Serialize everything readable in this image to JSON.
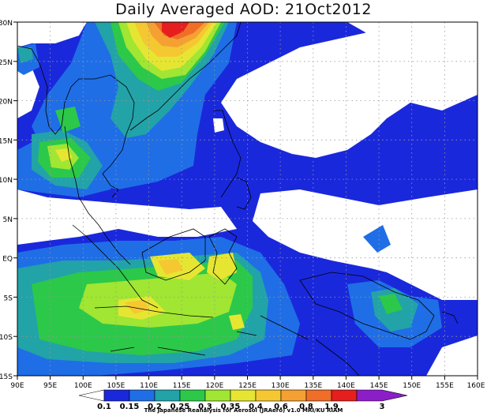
{
  "title": "Daily Averaged AOD: 21Oct2012",
  "credit": "The Japanese Reanalysis for Aerosol (JRAero) v1.0 MRI/KU RIAM",
  "map": {
    "lon_range": [
      90,
      160
    ],
    "lat_range": [
      -15,
      30
    ],
    "lon_ticks": [
      "90E",
      "95E",
      "100E",
      "105E",
      "110E",
      "115E",
      "120E",
      "125E",
      "130E",
      "135E",
      "140E",
      "145E",
      "150E",
      "155E",
      "160E"
    ],
    "lat_ticks": [
      "30N",
      "25N",
      "20N",
      "15N",
      "10N",
      "5N",
      "EQ",
      "5S",
      "10S",
      "15S"
    ]
  },
  "colorbar": {
    "labels": [
      "0.1",
      "0.15",
      "0.2",
      "0.25",
      "0.3",
      "0.35",
      "0.4",
      "0.6",
      "0.8",
      "1.9",
      "3"
    ],
    "colors": [
      "#ffffff",
      "#1a28dc",
      "#1f6ee6",
      "#22a3a8",
      "#2cc84a",
      "#a0e632",
      "#e6e632",
      "#f5c832",
      "#f5a032",
      "#f06e28",
      "#e61e1e",
      "#8c1ec8"
    ]
  }
}
